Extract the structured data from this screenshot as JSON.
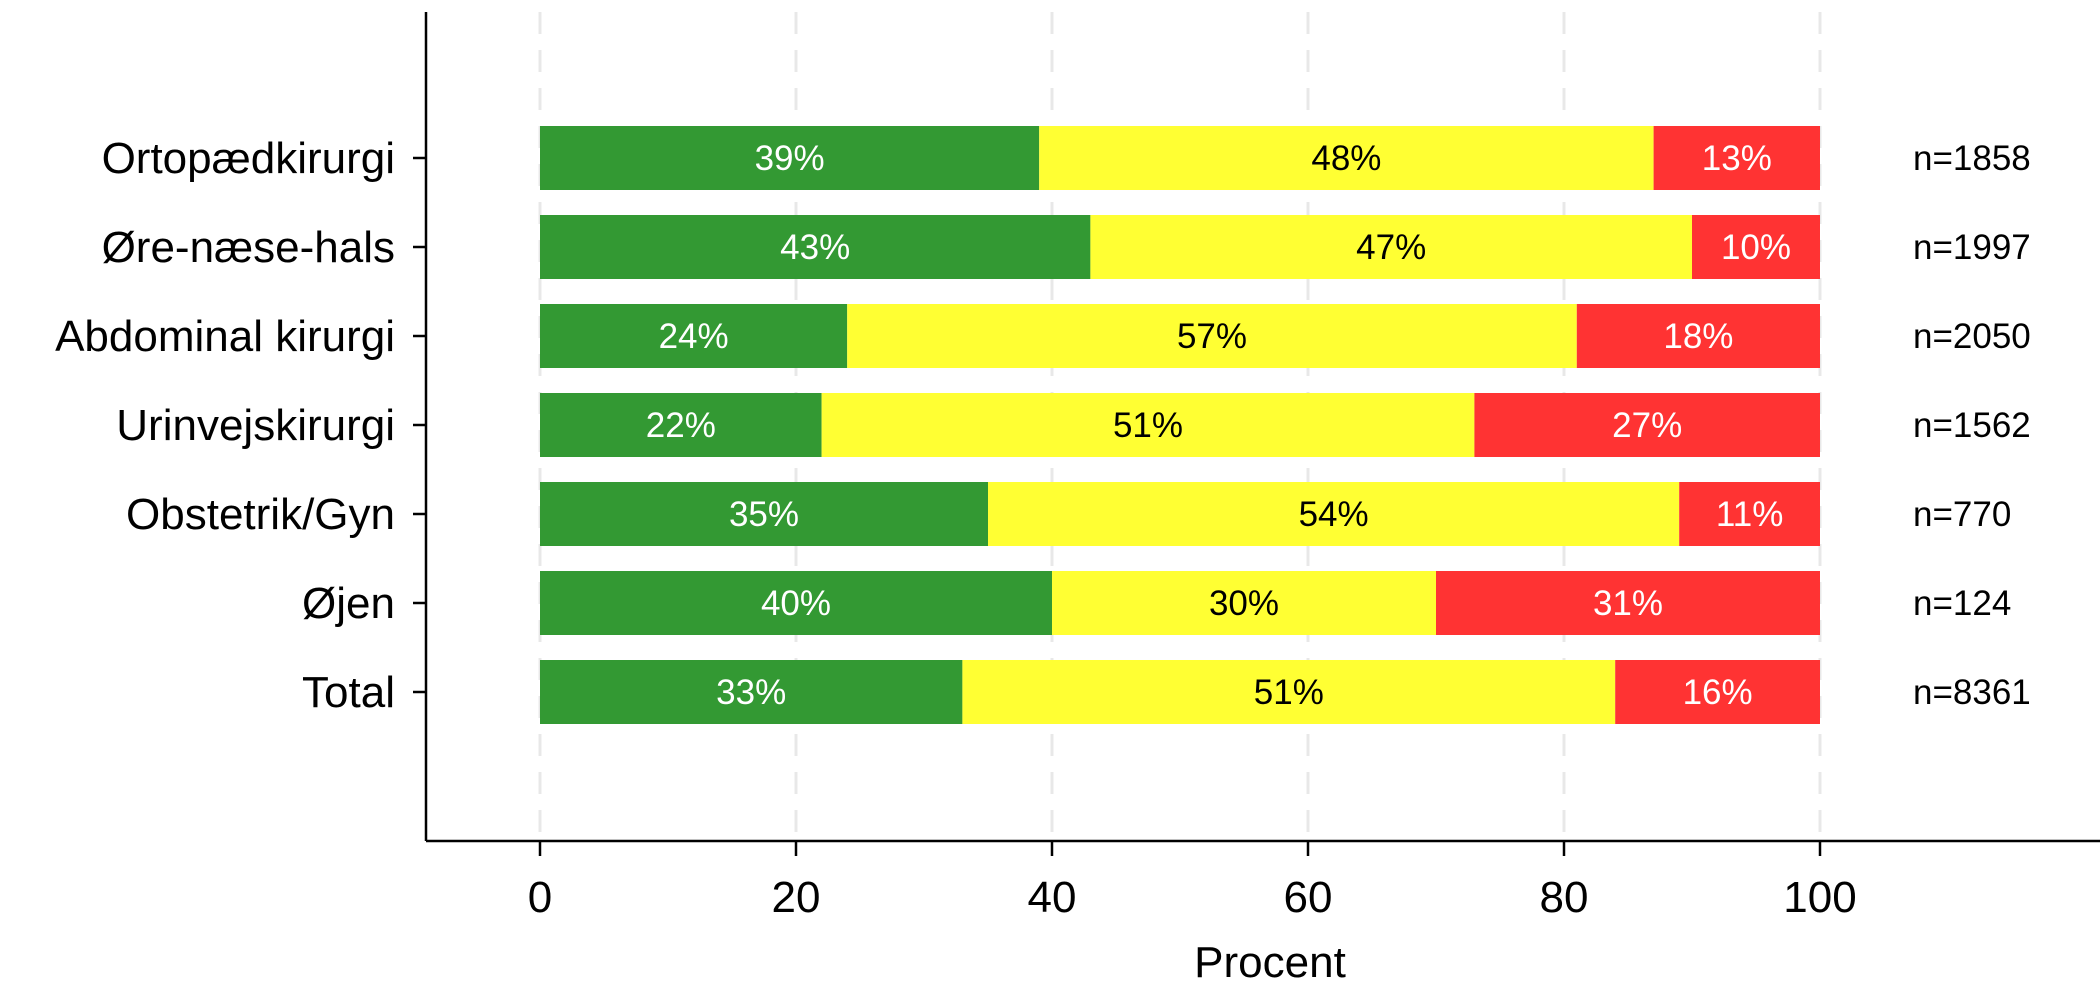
{
  "chart_data": {
    "type": "bar",
    "orientation": "horizontal",
    "stacked": true,
    "xlabel": "Procent",
    "ylabel": "",
    "xlim": [
      0,
      100
    ],
    "xticks": [
      "0",
      "20",
      "40",
      "60",
      "80",
      "100"
    ],
    "grid": true,
    "legend": "none",
    "categories": [
      "Ortopædkirurgi",
      "Øre-næse-hals",
      "Abdominal kirurgi",
      "Urinvejskirurgi",
      "Obstetrik/Gyn",
      "Øjen",
      "Total"
    ],
    "n_labels": [
      "n=1858",
      "n=1997",
      "n=2050",
      "n=1562",
      "n=770",
      "n=124",
      "n=8361"
    ],
    "series": [
      {
        "color": "#339933",
        "label_color": "#ffffff",
        "values": [
          39,
          43,
          24,
          22,
          35,
          40,
          33
        ],
        "labels": [
          "39%",
          "43%",
          "24%",
          "22%",
          "35%",
          "40%",
          "33%"
        ]
      },
      {
        "color": "#ffff33",
        "label_color": "#000000",
        "values": [
          48,
          47,
          57,
          51,
          54,
          30,
          51
        ],
        "labels": [
          "48%",
          "47%",
          "57%",
          "51%",
          "54%",
          "30%",
          "51%"
        ]
      },
      {
        "color": "#ff3333",
        "label_color": "#ffffff",
        "values": [
          13,
          10,
          18,
          27,
          11,
          31,
          16
        ],
        "labels": [
          "13%",
          "10%",
          "18%",
          "27%",
          "11%",
          "31%",
          "16%"
        ]
      }
    ]
  }
}
